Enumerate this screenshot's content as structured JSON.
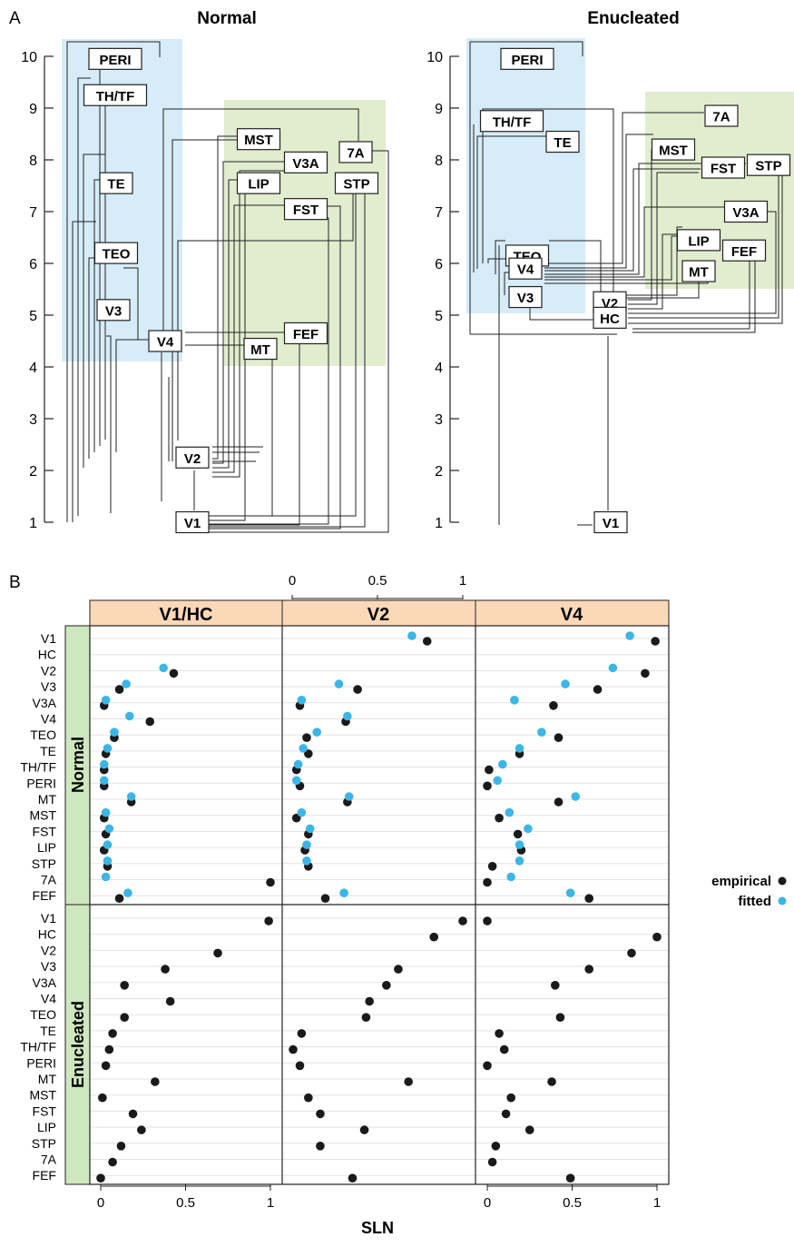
{
  "panel_a": {
    "letter": "A",
    "title_normal": "Normal",
    "title_enucleated": "Enucleated",
    "yticks": [
      "1",
      "2",
      "3",
      "4",
      "5",
      "6",
      "7",
      "8",
      "9",
      "10"
    ]
  },
  "panel_b": {
    "letter": "B",
    "column_headers": [
      "V1/HC",
      "V2",
      "V4"
    ],
    "row_strips": [
      "Normal",
      "Enucleated"
    ],
    "top_axis_ticks": [
      "0",
      "0.5",
      "1"
    ],
    "bottom_axis_ticks": [
      "0",
      "0.5",
      "1"
    ],
    "x_label": "SLN",
    "legend": {
      "empirical": "empirical",
      "fitted": "fitted",
      "empirical_color": "#1a1a1a",
      "fitted_color": "#3bb6e6"
    },
    "areas": [
      "V1",
      "HC",
      "V2",
      "V3",
      "V3A",
      "V4",
      "TEO",
      "TE",
      "TH/TF",
      "PERI",
      "MT",
      "MST",
      "FST",
      "LIP",
      "STP",
      "7A",
      "FEF"
    ]
  },
  "colors": {
    "blue_region": "#d6ecf8",
    "green_region": "#e2eccf",
    "strip_header": "#fbd9b8",
    "strip_side": "#cfe7bf"
  },
  "chart_data": [
    {
      "type": "diagram",
      "title": "Normal",
      "hierarchy_levels": [
        {
          "area": "PERI",
          "level": 9.95
        },
        {
          "area": "TH/TF",
          "level": 9.25
        },
        {
          "area": "MST",
          "level": 8.4
        },
        {
          "area": "7A",
          "level": 8.15
        },
        {
          "area": "V3A",
          "level": 7.95
        },
        {
          "area": "LIP",
          "level": 7.55
        },
        {
          "area": "STP",
          "level": 7.55
        },
        {
          "area": "TE",
          "level": 7.55
        },
        {
          "area": "FST",
          "level": 7.05
        },
        {
          "area": "TEO",
          "level": 6.2
        },
        {
          "area": "V3",
          "level": 5.1
        },
        {
          "area": "FEF",
          "level": 4.65
        },
        {
          "area": "V4",
          "level": 4.5
        },
        {
          "area": "MT",
          "level": 4.35
        },
        {
          "area": "V2",
          "level": 2.25
        },
        {
          "area": "V1",
          "level": 1.0
        }
      ]
    },
    {
      "type": "diagram",
      "title": "Enucleated",
      "hierarchy_levels": [
        {
          "area": "PERI",
          "level": 9.95
        },
        {
          "area": "7A",
          "level": 8.85
        },
        {
          "area": "TH/TF",
          "level": 8.75
        },
        {
          "area": "TE",
          "level": 8.35
        },
        {
          "area": "MST",
          "level": 8.2
        },
        {
          "area": "STP",
          "level": 7.9
        },
        {
          "area": "FST",
          "level": 7.85
        },
        {
          "area": "V3A",
          "level": 7.0
        },
        {
          "area": "LIP",
          "level": 6.45
        },
        {
          "area": "FEF",
          "level": 6.25
        },
        {
          "area": "TEO",
          "level": 6.15
        },
        {
          "area": "V4",
          "level": 5.9
        },
        {
          "area": "MT",
          "level": 5.85
        },
        {
          "area": "V3",
          "level": 5.35
        },
        {
          "area": "V2",
          "level": 5.25
        },
        {
          "area": "HC",
          "level": 4.95
        },
        {
          "area": "V1",
          "level": 1.0
        }
      ]
    },
    {
      "type": "scatter",
      "xlabel": "SLN",
      "xlim": [
        0,
        1
      ],
      "columns": [
        "V1/HC",
        "V2",
        "V4"
      ],
      "rows": [
        "Normal",
        "Enucleated"
      ],
      "categories": [
        "V1",
        "HC",
        "V2",
        "V3",
        "V3A",
        "V4",
        "TEO",
        "TE",
        "TH/TF",
        "PERI",
        "MT",
        "MST",
        "FST",
        "LIP",
        "STP",
        "7A",
        "FEF"
      ],
      "series": [
        {
          "name": "empirical",
          "values": {
            "Normal|V1/HC": {
              "V2": 0.43,
              "V3": 0.11,
              "V3A": 0.02,
              "V4": 0.29,
              "TEO": 0.08,
              "TE": 0.03,
              "TH/TF": 0.02,
              "PERI": 0.02,
              "MT": 0.18,
              "MST": 0.02,
              "FST": 0.03,
              "LIP": 0.02,
              "STP": 0.04,
              "7A": 1.0,
              "FEF": 0.11
            },
            "Normal|V2": {
              "V1": 0.79,
              "V3": 0.38,
              "V3A": 0.04,
              "V4": 0.31,
              "TEO": 0.08,
              "TE": 0.09,
              "TH/TF": 0.02,
              "PERI": 0.04,
              "MT": 0.32,
              "MST": 0.02,
              "FST": 0.09,
              "LIP": 0.07,
              "STP": 0.09,
              "7A": null,
              "FEF": 0.19
            },
            "Normal|V4": {
              "V1": 0.99,
              "V2": 0.93,
              "V3": 0.65,
              "V3A": 0.39,
              "TEO": 0.42,
              "TE": 0.19,
              "TH/TF": 0.01,
              "PERI": 0.0,
              "MT": 0.42,
              "MST": 0.07,
              "FST": 0.18,
              "LIP": 0.2,
              "STP": 0.03,
              "7A": 0.0,
              "FEF": 0.6
            },
            "Enucleated|V1/HC": {
              "V1": 0.99,
              "V2": 0.69,
              "V3": 0.38,
              "V3A": 0.14,
              "V4": 0.41,
              "TEO": 0.14,
              "TE": 0.07,
              "TH/TF": 0.05,
              "PERI": 0.03,
              "MT": 0.32,
              "MST": 0.01,
              "FST": 0.19,
              "LIP": 0.24,
              "STP": 0.12,
              "7A": 0.07,
              "FEF": 0.0
            },
            "Enucleated|V2": {
              "V1": 1.0,
              "HC": 0.83,
              "V3": 0.62,
              "V3A": 0.55,
              "V4": 0.45,
              "TEO": 0.43,
              "TE": 0.05,
              "TH/TF": 0.0,
              "PERI": 0.04,
              "MT": 0.68,
              "MST": 0.09,
              "FST": 0.16,
              "LIP": 0.42,
              "STP": 0.16,
              "7A": null,
              "FEF": 0.35
            },
            "Enucleated|V4": {
              "V1": 0.0,
              "HC": 1.0,
              "V2": 0.85,
              "V3": 0.6,
              "V3A": 0.4,
              "TEO": 0.43,
              "TE": 0.07,
              "TH/TF": 0.1,
              "PERI": 0.0,
              "MT": 0.38,
              "MST": 0.14,
              "FST": 0.11,
              "LIP": 0.25,
              "STP": 0.05,
              "7A": 0.03,
              "FEF": 0.49
            }
          }
        },
        {
          "name": "fitted",
          "values": {
            "Normal|V1/HC": {
              "V2": 0.37,
              "V3": 0.15,
              "V3A": 0.03,
              "V4": 0.17,
              "TEO": 0.08,
              "TE": 0.04,
              "TH/TF": 0.02,
              "PERI": 0.02,
              "MT": 0.18,
              "MST": 0.03,
              "FST": 0.05,
              "LIP": 0.04,
              "STP": 0.04,
              "7A": 0.03,
              "FEF": 0.16
            },
            "Normal|V2": {
              "V1": 0.7,
              "V3": 0.27,
              "V3A": 0.05,
              "V4": 0.32,
              "TEO": 0.14,
              "TE": 0.06,
              "TH/TF": 0.03,
              "PERI": 0.02,
              "MT": 0.33,
              "MST": 0.05,
              "FST": 0.1,
              "LIP": 0.08,
              "STP": 0.08,
              "7A": null,
              "FEF": 0.3
            },
            "Normal|V4": {
              "V1": 0.84,
              "V2": 0.74,
              "V3": 0.46,
              "V3A": 0.16,
              "TEO": 0.32,
              "TE": 0.19,
              "TH/TF": 0.09,
              "PERI": 0.06,
              "MT": 0.52,
              "MST": 0.13,
              "FST": 0.24,
              "LIP": 0.19,
              "STP": 0.19,
              "7A": 0.14,
              "FEF": 0.49
            }
          }
        }
      ]
    }
  ]
}
